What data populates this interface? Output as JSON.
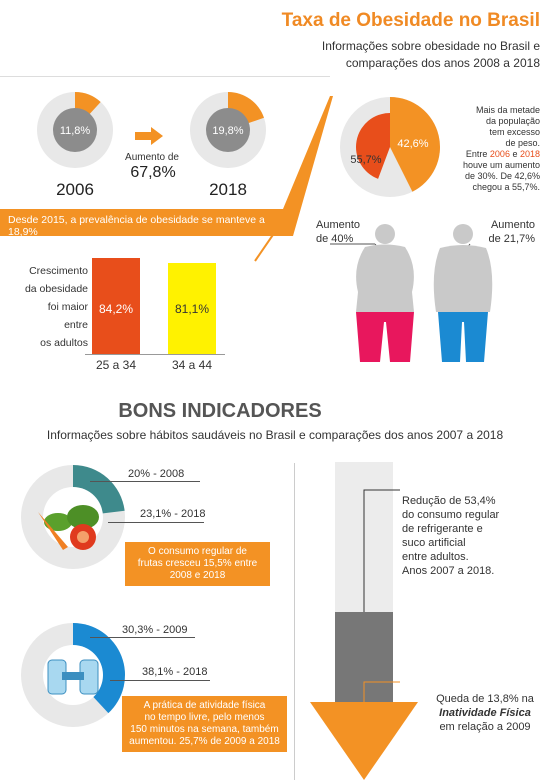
{
  "header": {
    "title": "Taxa de Obesidade no Brasil",
    "subtitle_line1": "Informações sobre obesidade no Brasil e",
    "subtitle_line2": "comparações dos anos 2008 a 2018"
  },
  "obesity": {
    "pie_2006": {
      "value_label": "11,8%",
      "fraction": 0.118,
      "year": "2006"
    },
    "pie_2018": {
      "value_label": "19,8%",
      "fraction": 0.198,
      "year": "2018"
    },
    "increase_label": "Aumento de",
    "increase_value": "67,8%",
    "band_text": "Desde 2015, a prevalência de obesidade se manteve a 18,9%"
  },
  "overweight": {
    "outer_label": "42,6%",
    "inner_label": "55,7%",
    "outer_fraction": 0.426,
    "inner_fraction": 0.557,
    "text_line1": "Mais da metade",
    "text_line2": "da população",
    "text_line3": "tem excesso",
    "text_line4": "de peso.",
    "text_line5_a": "Entre ",
    "text_line5_y1": "2006",
    "text_line5_b": " e ",
    "text_line5_y2": "2018",
    "text_line6": "houve um aumento",
    "text_line7": "de 30%. De 42,6%",
    "text_line8": "chegou a 55,7%."
  },
  "gender": {
    "female_label_1": "Aumento",
    "female_label_2": "de 40%",
    "male_label_1": "Aumento",
    "male_label_2": "de 21,7%"
  },
  "age_growth": {
    "text_lines": [
      "Crescimento",
      "da obesidade",
      "foi maior",
      "entre",
      "os adultos"
    ],
    "bars": [
      {
        "label": "25 a 34",
        "value_label": "84,2%",
        "color": "#e84e1b"
      },
      {
        "label": "34 a 44",
        "value_label": "81,1%",
        "color": "#fff200"
      }
    ]
  },
  "good": {
    "heading": "BONS INDICADORES",
    "subheading": "Informações sobre hábitos saudáveis no Brasil e comparações dos anos 2007 a 2018",
    "fruits": {
      "label_a": "20% - 2008",
      "label_b": "23,1% - 2018",
      "fraction_a": 0.2,
      "fraction_b": 0.231,
      "box_line1": "O consumo regular de",
      "box_line2": "frutas cresceu 15,5% entre",
      "box_line3": "2008 e 2018"
    },
    "exercise": {
      "label_a": "30,3% - 2009",
      "label_b": "38,1% - 2018",
      "fraction_a": 0.303,
      "fraction_b": 0.381,
      "box_line1": "A prática de atividade física",
      "box_line2": "no tempo livre, pelo menos",
      "box_line3": "150 minutos na semana, também",
      "box_line4": "aumentou. 25,7% de 2009 a 2018"
    },
    "soda": {
      "line1": "Redução de 53,4%",
      "line2": "do consumo regular",
      "line3": "de refrigerante e",
      "line4": "suco artificial",
      "line5": "entre adultos.",
      "line6": "Anos 2007 a 2018."
    },
    "inactivity": {
      "line1": "Queda de 13,8% na",
      "line2": "Inatividade Física",
      "line3": "em relação a 2009"
    }
  },
  "colors": {
    "accent": "#f39224",
    "gray_pie": "#e6e6e6",
    "gray_dark": "#8c8c8c",
    "red": "#e84e1b",
    "yellow": "#fff200",
    "blue": "#1b8ad2",
    "teal": "#3e8a8c",
    "pink": "#e8175d"
  }
}
